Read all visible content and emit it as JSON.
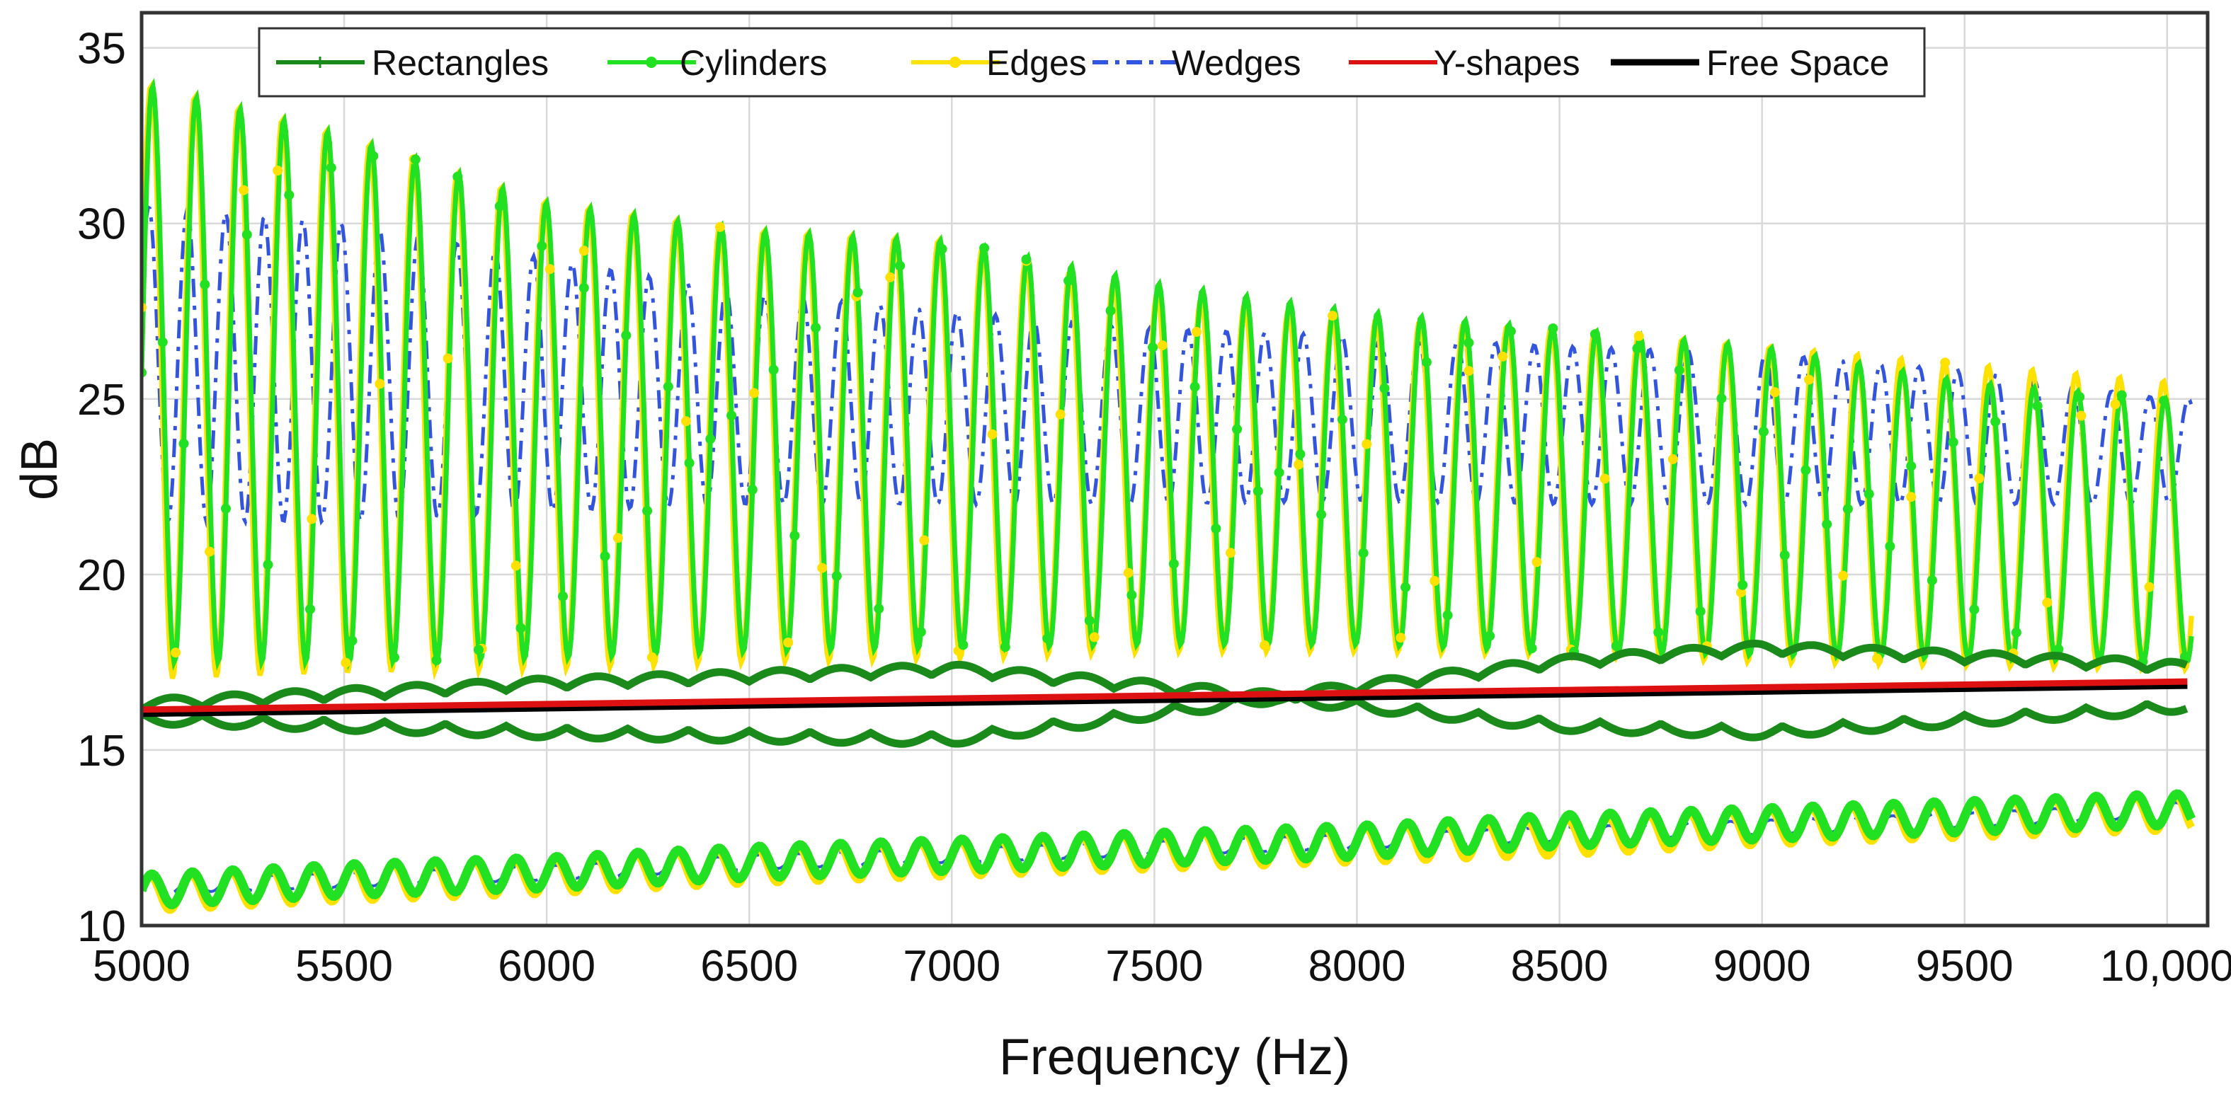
{
  "chart_data": {
    "type": "line",
    "title": "",
    "xlabel": "Frequency (Hz)",
    "ylabel": "dB",
    "xlim": [
      5000,
      10100
    ],
    "ylim": [
      10,
      36
    ],
    "grid": true,
    "legend_position": "top",
    "x_ticks": [
      5000,
      5500,
      6000,
      6500,
      7000,
      7500,
      8000,
      8500,
      9000,
      9500,
      10000
    ],
    "x_tick_labels": [
      "5000",
      "5500",
      "6000",
      "6500",
      "7000",
      "7500",
      "8000",
      "8500",
      "9000",
      "9500",
      "10,000"
    ],
    "y_ticks": [
      10,
      15,
      20,
      25,
      30,
      35
    ],
    "y_tick_labels": [
      "10",
      "15",
      "20",
      "25",
      "30",
      "35"
    ],
    "series": [
      {
        "name": "Rectangles",
        "color": "#1a8a1a",
        "style": "solid",
        "marker": "plus",
        "description": "two oscillating envelopes around 15-18 dB crossing near 7800 Hz",
        "bands": [
          {
            "x": [
              5000,
              6000,
              7000,
              7800,
              8500,
              9000,
              10000,
              10050
            ],
            "center": [
              16.1,
              16.2,
              16.3,
              16.5,
              16.6,
              16.7,
              16.8,
              16.8
            ],
            "amplitude": [
              0.2,
              0.7,
              1.0,
              0.0,
              0.9,
              1.2,
              0.6,
              0.5
            ],
            "period_hz": 150
          }
        ]
      },
      {
        "name": "Cylinders",
        "color": "#22e022",
        "style": "solid",
        "marker": "circle",
        "peaks": [
          34.0,
          32.5,
          30.6,
          29.8,
          29.5,
          28.3,
          27.5,
          27.0,
          26.5,
          25.5,
          25.0
        ],
        "troughs": [
          17.5,
          17.5,
          17.6,
          17.8,
          17.9,
          18.0,
          18.0,
          17.8,
          17.7,
          17.6,
          17.5
        ],
        "x": [
          5000,
          5500,
          6000,
          6500,
          7000,
          7500,
          8000,
          8500,
          9000,
          9500,
          10000
        ],
        "period_hz": 108,
        "lower_band": {
          "center": [
            11.0,
            11.3,
            11.5,
            11.8,
            12.0,
            12.2,
            12.4,
            12.7,
            12.9,
            13.1,
            13.3
          ],
          "amplitude": 0.45,
          "period_hz": 100
        }
      },
      {
        "name": "Edges",
        "color": "#ffe100",
        "style": "solid",
        "marker": "circle",
        "peaks": [
          34.0,
          32.5,
          30.6,
          29.8,
          29.5,
          28.0,
          27.3,
          27.0,
          26.5,
          26.0,
          25.5
        ],
        "troughs": [
          17.0,
          17.2,
          17.3,
          17.5,
          17.6,
          17.8,
          17.8,
          17.7,
          17.5,
          17.4,
          17.3
        ],
        "x": [
          5000,
          5500,
          6000,
          6500,
          7000,
          7500,
          8000,
          8500,
          9000,
          9500,
          10000
        ],
        "period_hz": 108,
        "lower_band": {
          "center": [
            10.9,
            11.2,
            11.4,
            11.7,
            11.9,
            12.1,
            12.3,
            12.5,
            12.8,
            13.0,
            13.2
          ],
          "amplitude": 0.5,
          "period_hz": 100
        }
      },
      {
        "name": "Wedges",
        "color": "#3355dd",
        "style": "dashdot",
        "marker": "none",
        "peaks": [
          30.5,
          30.0,
          29.0,
          28.0,
          27.5,
          27.0,
          26.8,
          26.5,
          26.3,
          25.8,
          25.0
        ],
        "troughs": [
          21.5,
          21.5,
          21.8,
          22.0,
          22.0,
          22.0,
          22.1,
          22.0,
          22.0,
          22.0,
          22.0
        ],
        "x": [
          5000,
          5500,
          6000,
          6500,
          7000,
          7500,
          8000,
          8500,
          9000,
          9500,
          10000
        ],
        "period_hz": 95,
        "lower_band": {
          "center": [
            11.1,
            11.3,
            11.5,
            11.8,
            12.0,
            12.2,
            12.4,
            12.6,
            12.8,
            13.0,
            13.3
          ],
          "amplitude": 0.2,
          "period_hz": 100
        }
      },
      {
        "name": "Y-shapes",
        "color": "#dd1111",
        "style": "solid",
        "marker": "none",
        "x": [
          5000,
          10050
        ],
        "values": [
          16.1,
          16.9
        ]
      },
      {
        "name": "Free Space",
        "color": "#000000",
        "style": "solid",
        "marker": "none",
        "x": [
          5000,
          10050
        ],
        "values": [
          16.0,
          16.8
        ]
      }
    ]
  }
}
